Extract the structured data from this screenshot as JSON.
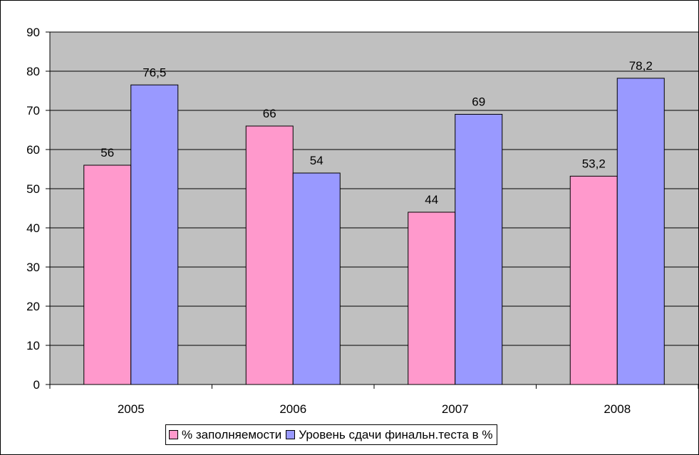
{
  "chart_data": {
    "type": "bar",
    "categories": [
      "2005",
      "2006",
      "2007",
      "2008"
    ],
    "series": [
      {
        "name": "% заполняемости",
        "values": [
          56,
          66,
          44,
          53.2
        ],
        "labels": [
          "56",
          "66",
          "44",
          "53,2"
        ],
        "color": "#FF99CC"
      },
      {
        "name": "Уровень сдачи финальн.теста в %",
        "values": [
          76.5,
          54,
          69,
          78.2
        ],
        "labels": [
          "76,5",
          "54",
          "69",
          "78,2"
        ],
        "color": "#9999FF"
      }
    ],
    "ylim": [
      0,
      90
    ],
    "yticks": [
      "0",
      "10",
      "20",
      "30",
      "40",
      "50",
      "60",
      "70",
      "80",
      "90"
    ],
    "grid": true,
    "legend_position": "bottom",
    "plot_background": "#C0C0C0"
  }
}
